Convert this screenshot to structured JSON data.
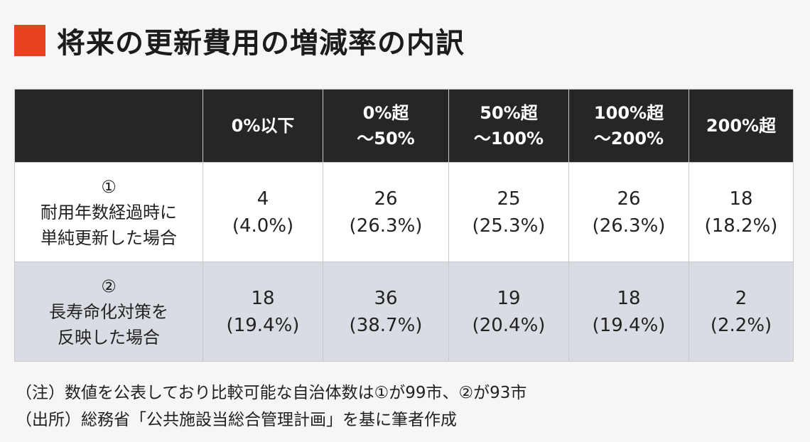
{
  "title": "将来の更新費用の増減率の内訳",
  "colors": {
    "accent": "#e8431e",
    "header_bg": "#262626",
    "row2_bg": "#d9dce3"
  },
  "chart_data": {
    "type": "table",
    "columns": [
      {
        "line1": "",
        "line2": ""
      },
      {
        "line1": "0%以下",
        "line2": ""
      },
      {
        "line1": "0%超",
        "line2": "～50%"
      },
      {
        "line1": "50%超",
        "line2": "～100%"
      },
      {
        "line1": "100%超",
        "line2": "～200%"
      },
      {
        "line1": "200%超",
        "line2": ""
      }
    ],
    "rows": [
      {
        "label_lines": [
          "①",
          "耐用年数経過時に",
          "単純更新した場合"
        ],
        "cells": [
          {
            "count": "4",
            "pct": "(4.0%)"
          },
          {
            "count": "26",
            "pct": "(26.3%)"
          },
          {
            "count": "25",
            "pct": "(25.3%)"
          },
          {
            "count": "26",
            "pct": "(26.3%)"
          },
          {
            "count": "18",
            "pct": "(18.2%)"
          }
        ]
      },
      {
        "label_lines": [
          "②",
          "長寿命化対策を",
          "反映した場合"
        ],
        "cells": [
          {
            "count": "18",
            "pct": "(19.4%)"
          },
          {
            "count": "36",
            "pct": "(38.7%)"
          },
          {
            "count": "19",
            "pct": "(20.4%)"
          },
          {
            "count": "18",
            "pct": "(19.4%)"
          },
          {
            "count": "2",
            "pct": "(2.2%)"
          }
        ]
      }
    ]
  },
  "notes": [
    "（注）数値を公表しており比較可能な自治体数は①が99市、②が93市",
    "（出所）総務省「公共施設当総合管理計画」を基に筆者作成"
  ]
}
